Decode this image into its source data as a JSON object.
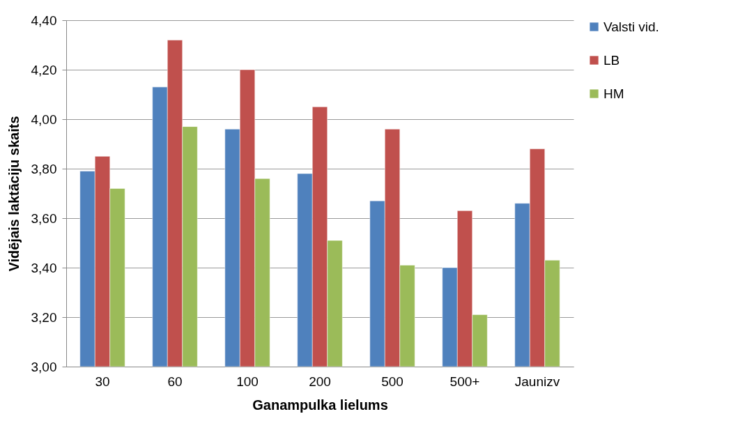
{
  "chart_data": {
    "type": "bar",
    "xlabel": "Ganampulka lielums",
    "ylabel": "Vidējais laktāciju skaits",
    "categories": [
      "30",
      "60",
      "100",
      "200",
      "500",
      "500+",
      "Jaunizv"
    ],
    "series": [
      {
        "name": "Valsti vid.",
        "color": "#4f81bd",
        "values": [
          3.79,
          4.13,
          3.96,
          3.78,
          3.67,
          3.4,
          3.66
        ]
      },
      {
        "name": "LB",
        "color": "#c0504d",
        "values": [
          3.85,
          4.32,
          4.2,
          4.05,
          3.96,
          3.63,
          3.88
        ]
      },
      {
        "name": "HM",
        "color": "#9bbb59",
        "values": [
          3.72,
          3.97,
          3.76,
          3.51,
          3.41,
          3.21,
          3.43
        ]
      }
    ],
    "ylim": [
      3.0,
      4.4
    ],
    "yticks": [
      {
        "value": 3.0,
        "label": "3,00"
      },
      {
        "value": 3.2,
        "label": "3,20"
      },
      {
        "value": 3.4,
        "label": "3,40"
      },
      {
        "value": 3.6,
        "label": "3,60"
      },
      {
        "value": 3.8,
        "label": "3,80"
      },
      {
        "value": 4.0,
        "label": "4,00"
      },
      {
        "value": 4.2,
        "label": "4,20"
      },
      {
        "value": 4.4,
        "label": "4,40"
      }
    ],
    "grid": "y",
    "legend": "right"
  }
}
